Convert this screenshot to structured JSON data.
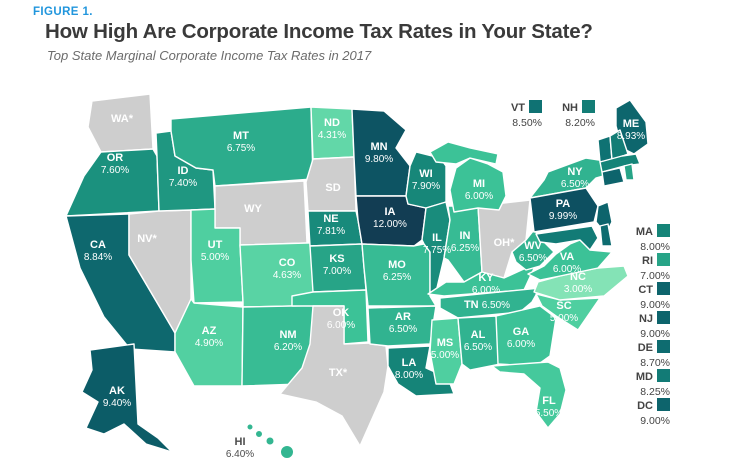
{
  "figure_label": "FIGURE 1.",
  "title": "How High Are Corporate Income Tax Rates in Your State?",
  "subtitle": "Top State Marginal Corporate Income Tax Rates in 2017",
  "colors": {
    "accent_blue": "#2196dd",
    "title_text": "#3a3a3a",
    "subtitle_text": "#6c6c6c",
    "no_tax_fill": "#cecece",
    "state_border": "#ffffff",
    "map_label_text": "#ffffff",
    "outside_label_text": "#4d4d4d",
    "scale": [
      [
        3.0,
        "#84e3b6"
      ],
      [
        4.31,
        "#62d7a8"
      ],
      [
        5.0,
        "#4fcfa0"
      ],
      [
        5.5,
        "#45c99c"
      ],
      [
        6.0,
        "#3cc297"
      ],
      [
        6.5,
        "#31b390"
      ],
      [
        7.0,
        "#27a487"
      ],
      [
        7.5,
        "#1d947f"
      ],
      [
        8.0,
        "#158478"
      ],
      [
        8.5,
        "#0f7273"
      ],
      [
        9.0,
        "#0d646c"
      ],
      [
        9.5,
        "#0c5a66"
      ],
      [
        10.0,
        "#0d5061"
      ],
      [
        12.0,
        "#123d53"
      ]
    ]
  },
  "chart_data": {
    "type": "heatmap",
    "subtype": "us-state-choropleth",
    "unit": "percent",
    "value_domain": [
      3.0,
      12.0
    ],
    "legend_top": [
      "VT",
      "NH"
    ],
    "legend_side": [
      "MA",
      "RI",
      "CT",
      "NJ",
      "DE",
      "MD",
      "DC"
    ],
    "gray_state_labels": [
      "WA*",
      "NV*",
      "WY",
      "SD",
      "TX*",
      "OH*"
    ],
    "states": [
      {
        "abbr": "WA",
        "label": "WA*",
        "rate": "",
        "value": null,
        "gray": true
      },
      {
        "abbr": "OR",
        "label": "OR",
        "rate": "7.60%",
        "value": 7.6,
        "gray": false
      },
      {
        "abbr": "CA",
        "label": "CA",
        "rate": "8.84%",
        "value": 8.84,
        "gray": false
      },
      {
        "abbr": "NV",
        "label": "NV*",
        "rate": "",
        "value": null,
        "gray": true
      },
      {
        "abbr": "ID",
        "label": "ID",
        "rate": "7.40%",
        "value": 7.4,
        "gray": false
      },
      {
        "abbr": "MT",
        "label": "MT",
        "rate": "6.75%",
        "value": 6.75,
        "gray": false
      },
      {
        "abbr": "WY",
        "label": "WY",
        "rate": "",
        "value": null,
        "gray": true
      },
      {
        "abbr": "UT",
        "label": "UT",
        "rate": "5.00%",
        "value": 5.0,
        "gray": false
      },
      {
        "abbr": "CO",
        "label": "CO",
        "rate": "4.63%",
        "value": 4.63,
        "gray": false
      },
      {
        "abbr": "AZ",
        "label": "AZ",
        "rate": "4.90%",
        "value": 4.9,
        "gray": false
      },
      {
        "abbr": "NM",
        "label": "NM",
        "rate": "6.20%",
        "value": 6.2,
        "gray": false
      },
      {
        "abbr": "ND",
        "label": "ND",
        "rate": "4.31%",
        "value": 4.31,
        "gray": false
      },
      {
        "abbr": "SD",
        "label": "SD",
        "rate": "",
        "value": null,
        "gray": true
      },
      {
        "abbr": "NE",
        "label": "NE",
        "rate": "7.81%",
        "value": 7.81,
        "gray": false
      },
      {
        "abbr": "KS",
        "label": "KS",
        "rate": "7.00%",
        "value": 7.0,
        "gray": false
      },
      {
        "abbr": "OK",
        "label": "OK",
        "rate": "6.00%",
        "value": 6.0,
        "gray": false
      },
      {
        "abbr": "TX",
        "label": "TX*",
        "rate": "",
        "value": null,
        "gray": true
      },
      {
        "abbr": "MN",
        "label": "MN",
        "rate": "9.80%",
        "value": 9.8,
        "gray": false
      },
      {
        "abbr": "IA",
        "label": "IA",
        "rate": "12.00%",
        "value": 12.0,
        "gray": false
      },
      {
        "abbr": "MO",
        "label": "MO",
        "rate": "6.25%",
        "value": 6.25,
        "gray": false
      },
      {
        "abbr": "AR",
        "label": "AR",
        "rate": "6.50%",
        "value": 6.5,
        "gray": false
      },
      {
        "abbr": "LA",
        "label": "LA",
        "rate": "8.00%",
        "value": 8.0,
        "gray": false
      },
      {
        "abbr": "WI",
        "label": "WI",
        "rate": "7.90%",
        "value": 7.9,
        "gray": false
      },
      {
        "abbr": "IL",
        "label": "IL",
        "rate": "7.75%",
        "value": 7.75,
        "gray": false
      },
      {
        "abbr": "IN",
        "label": "IN",
        "rate": "6.25%",
        "value": 6.25,
        "gray": false
      },
      {
        "abbr": "OH",
        "label": "OH*",
        "rate": "",
        "value": null,
        "gray": true
      },
      {
        "abbr": "MI",
        "label": "MI",
        "rate": "6.00%",
        "value": 6.0,
        "gray": false
      },
      {
        "abbr": "KY",
        "label": "KY",
        "rate": "6.00%",
        "value": 6.0,
        "gray": false
      },
      {
        "abbr": "TN",
        "label": "TN",
        "rate": "6.50%",
        "value": 6.5,
        "gray": false
      },
      {
        "abbr": "MS",
        "label": "MS",
        "rate": "5.00%",
        "value": 5.0,
        "gray": false
      },
      {
        "abbr": "AL",
        "label": "AL",
        "rate": "6.50%",
        "value": 6.5,
        "gray": false
      },
      {
        "abbr": "GA",
        "label": "GA",
        "rate": "6.00%",
        "value": 6.0,
        "gray": false
      },
      {
        "abbr": "FL",
        "label": "FL",
        "rate": "5.50%",
        "value": 5.5,
        "gray": false
      },
      {
        "abbr": "SC",
        "label": "SC",
        "rate": "5.00%",
        "value": 5.0,
        "gray": false
      },
      {
        "abbr": "NC",
        "label": "NC",
        "rate": "3.00%",
        "value": 3.0,
        "gray": false
      },
      {
        "abbr": "VA",
        "label": "VA",
        "rate": "6.00%",
        "value": 6.0,
        "gray": false
      },
      {
        "abbr": "WV",
        "label": "WV",
        "rate": "6.50%",
        "value": 6.5,
        "gray": false
      },
      {
        "abbr": "NY",
        "label": "NY",
        "rate": "6.50%",
        "value": 6.5,
        "gray": false
      },
      {
        "abbr": "PA",
        "label": "PA",
        "rate": "9.99%",
        "value": 9.99,
        "gray": false
      },
      {
        "abbr": "NJ",
        "label": "NJ",
        "rate": "9.00%",
        "value": 9.0,
        "gray": false
      },
      {
        "abbr": "DE",
        "label": "DE",
        "rate": "8.70%",
        "value": 8.7,
        "gray": false
      },
      {
        "abbr": "MD",
        "label": "MD",
        "rate": "8.25%",
        "value": 8.25,
        "gray": false
      },
      {
        "abbr": "ME",
        "label": "ME",
        "rate": "8.93%",
        "value": 8.93,
        "gray": false
      },
      {
        "abbr": "VT",
        "label": "VT",
        "rate": "8.50%",
        "value": 8.5,
        "gray": false
      },
      {
        "abbr": "NH",
        "label": "NH",
        "rate": "8.20%",
        "value": 8.2,
        "gray": false
      },
      {
        "abbr": "MA",
        "label": "MA",
        "rate": "8.00%",
        "value": 8.0,
        "gray": false
      },
      {
        "abbr": "CT",
        "label": "CT",
        "rate": "9.00%",
        "value": 9.0,
        "gray": false
      },
      {
        "abbr": "RI",
        "label": "RI",
        "rate": "7.00%",
        "value": 7.0,
        "gray": false
      },
      {
        "abbr": "AK",
        "label": "AK",
        "rate": "9.40%",
        "value": 9.4,
        "gray": false
      },
      {
        "abbr": "HI",
        "label": "HI",
        "rate": "6.40%",
        "value": 6.4,
        "gray": false
      },
      {
        "abbr": "DC",
        "label": "DC",
        "rate": "9.00%",
        "value": 9.0,
        "gray": false
      }
    ]
  }
}
